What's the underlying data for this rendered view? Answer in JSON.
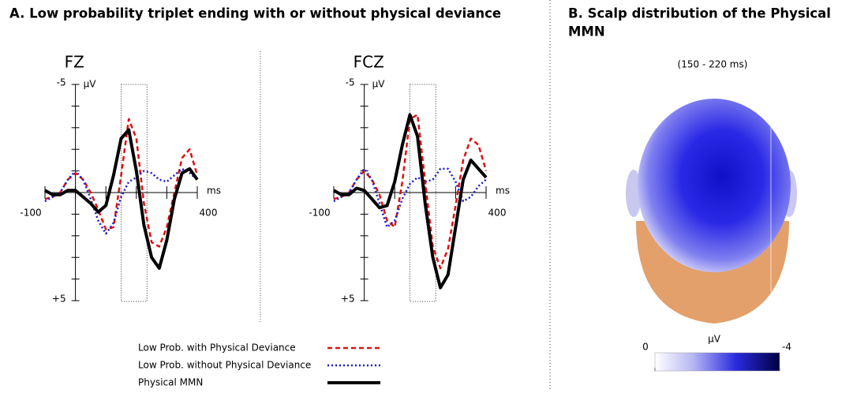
{
  "figure_title": "A. Low probability triplet ending with or without physical deviance",
  "chart_data": [
    {
      "type": "line",
      "title": "FZ",
      "xlabel": "ms",
      "ylabel": "μV",
      "x": [
        -100,
        -75,
        -50,
        -25,
        0,
        25,
        50,
        75,
        100,
        125,
        150,
        175,
        200,
        225,
        250,
        275,
        300,
        325,
        350,
        375,
        400
      ],
      "xlim": [
        -100,
        400
      ],
      "xticks": [
        -100,
        400
      ],
      "xminor": [
        0,
        100,
        200,
        300
      ],
      "ylim": [
        -5,
        5
      ],
      "y_inverted": true,
      "yticks": [
        -5,
        {
          "value": 5,
          "label": "+5"
        }
      ],
      "yminor": [
        -4,
        -3,
        -2,
        -1,
        1,
        2,
        3,
        4
      ],
      "highlight_xlim": [
        150,
        235
      ],
      "series": [
        {
          "name": "Low Prob. with Physical Deviance",
          "color": "#e01010",
          "dash": "6,4",
          "width": 2.5,
          "values": [
            0.3,
            0.2,
            0,
            -0.6,
            -0.9,
            -0.6,
            0,
            0.8,
            1.7,
            1.6,
            -0.8,
            -3.4,
            -2.5,
            0.5,
            2.3,
            2.5,
            1.6,
            0,
            -1.6,
            -2,
            -0.8
          ]
        },
        {
          "name": "Low Prob. without Physical Deviance",
          "color": "#1a1acc",
          "dash": "2,3",
          "width": 2.5,
          "values": [
            0.4,
            0.2,
            0,
            -0.6,
            -1,
            -0.6,
            0.3,
            1.3,
            1.9,
            1.4,
            0.2,
            -0.5,
            -0.7,
            -1,
            -0.9,
            -0.6,
            -0.5,
            -0.8,
            -1.1,
            -0.9,
            -0.6
          ]
        },
        {
          "name": "Physical MMN",
          "color": "#000000",
          "dash": "none",
          "width": 4,
          "values": [
            -0.1,
            0.1,
            0.1,
            -0.1,
            -0.1,
            0.2,
            0.5,
            0.9,
            0.6,
            -0.8,
            -2.5,
            -2.9,
            -1,
            1.5,
            3,
            3.5,
            2.2,
            0.3,
            -0.9,
            -1.1,
            -0.6
          ]
        }
      ]
    },
    {
      "type": "line",
      "title": "FCZ",
      "xlabel": "ms",
      "ylabel": "μV",
      "x": [
        -100,
        -75,
        -50,
        -25,
        0,
        25,
        50,
        75,
        100,
        125,
        150,
        175,
        200,
        225,
        250,
        275,
        300,
        325,
        350,
        375,
        400
      ],
      "xlim": [
        -100,
        400
      ],
      "xticks": [
        -100,
        400
      ],
      "xminor": [
        0,
        100,
        200,
        300
      ],
      "ylim": [
        -5,
        5
      ],
      "y_inverted": true,
      "yticks": [
        -5,
        {
          "value": 5,
          "label": "+5"
        }
      ],
      "yminor": [
        -4,
        -3,
        -2,
        -1,
        1,
        2,
        3,
        4
      ],
      "highlight_xlim": [
        150,
        235
      ],
      "series": [
        {
          "name": "Low Prob. with Physical Deviance",
          "color": "#e01010",
          "dash": "6,4",
          "width": 2.5,
          "values": [
            0.3,
            0.2,
            0,
            -0.6,
            -1,
            -0.6,
            0.1,
            1.3,
            1.6,
            -0.5,
            -3.4,
            -3.6,
            -0.5,
            2.5,
            3.5,
            2.6,
            0.6,
            -1.5,
            -2.5,
            -2.2,
            -1
          ]
        },
        {
          "name": "Low Prob. without Physical Deviance",
          "color": "#1a1acc",
          "dash": "2,3",
          "width": 2.5,
          "values": [
            0.4,
            0.2,
            0,
            -0.6,
            -1.1,
            -0.6,
            0.5,
            1.6,
            1.3,
            0.3,
            -0.4,
            -0.7,
            -0.5,
            -0.6,
            -1.1,
            -1.1,
            -0.5,
            0.4,
            0.2,
            -0.3,
            -0.6
          ]
        },
        {
          "name": "Physical MMN",
          "color": "#000000",
          "dash": "none",
          "width": 4,
          "values": [
            -0.1,
            0.1,
            0.1,
            -0.2,
            -0.1,
            0.3,
            0.7,
            0.6,
            -0.5,
            -2.2,
            -3.6,
            -2.6,
            0.5,
            3,
            4.4,
            3.8,
            1.6,
            -0.6,
            -1.5,
            -1.1,
            -0.7
          ]
        }
      ]
    },
    {
      "type": "topomap",
      "title": "B. Scalp distribution of the Physical",
      "title_line2": "MMN",
      "subtitle": "(150 - 220 ms)",
      "colorbar": {
        "label": "μV",
        "lim": [
          0,
          -4
        ],
        "ticks": [
          0,
          -4
        ]
      }
    }
  ]
}
